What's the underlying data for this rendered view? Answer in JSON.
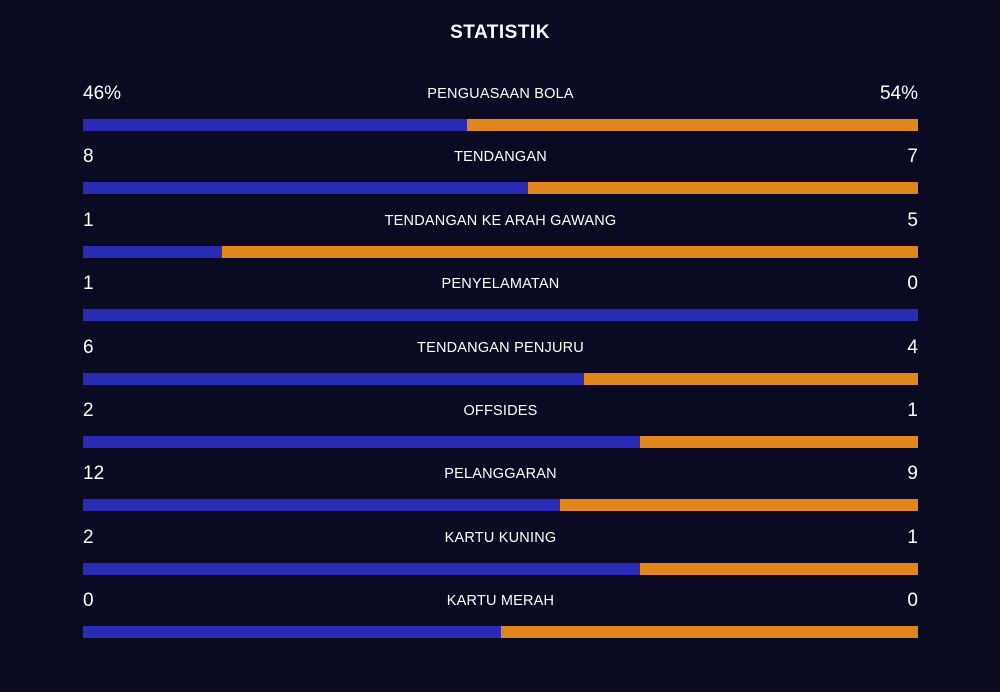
{
  "title": "STATISTIK",
  "colors": {
    "background": "#0a0a22",
    "home": "#2a2bb5",
    "away": "#e0861c"
  },
  "stats": [
    {
      "label": "PENGUASAAN BOLA",
      "home": "46%",
      "away": "54%",
      "home_share": 0.46
    },
    {
      "label": "TENDANGAN",
      "home": "8",
      "away": "7",
      "home_share": 0.5333
    },
    {
      "label": "TENDANGAN KE ARAH GAWANG",
      "home": "1",
      "away": "5",
      "home_share": 0.1667
    },
    {
      "label": "PENYELAMATAN",
      "home": "1",
      "away": "0",
      "home_share": 1.0
    },
    {
      "label": "TENDANGAN PENJURU",
      "home": "6",
      "away": "4",
      "home_share": 0.6
    },
    {
      "label": "OFFSIDES",
      "home": "2",
      "away": "1",
      "home_share": 0.6667
    },
    {
      "label": "PELANGGARAN",
      "home": "12",
      "away": "9",
      "home_share": 0.5714
    },
    {
      "label": "KARTU KUNING",
      "home": "2",
      "away": "1",
      "home_share": 0.6667
    },
    {
      "label": "KARTU MERAH",
      "home": "0",
      "away": "0",
      "home_share": 0.5
    }
  ]
}
